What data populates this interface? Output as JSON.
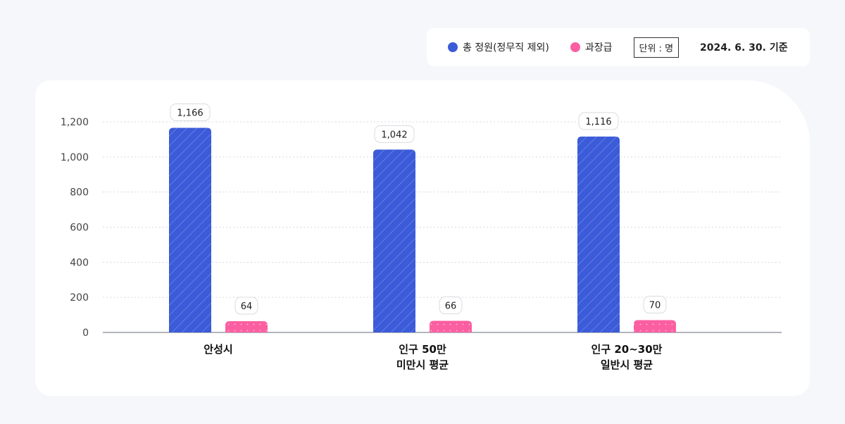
{
  "legend": {
    "series1_label": "총 정원(정무직 제외)",
    "series2_label": "과장급",
    "unit": "단위 : 명",
    "basis_date": "2024. 6. 30. 기준"
  },
  "colors": {
    "series1": "#3b5bd8",
    "series2": "#fb5fa1"
  },
  "chart_data": {
    "type": "bar",
    "categories": [
      [
        "안성시"
      ],
      [
        "인구 50만",
        "미만시 평균"
      ],
      [
        "인구 20~30만",
        "일반시 평균"
      ]
    ],
    "series": [
      {
        "name": "총 정원(정무직 제외)",
        "values": [
          1166,
          1042,
          1116
        ],
        "value_labels": [
          "1,166",
          "1,042",
          "1,116"
        ]
      },
      {
        "name": "과장급",
        "values": [
          64,
          66,
          70
        ],
        "value_labels": [
          "64",
          "66",
          "70"
        ]
      }
    ],
    "ylim": [
      0,
      1200
    ],
    "yticks": [
      0,
      200,
      400,
      600,
      800,
      1000,
      1200
    ],
    "ytick_labels": [
      "0",
      "200",
      "400",
      "600",
      "800",
      "1,000",
      "1,200"
    ],
    "grid": true,
    "legend_position": "top-right"
  }
}
